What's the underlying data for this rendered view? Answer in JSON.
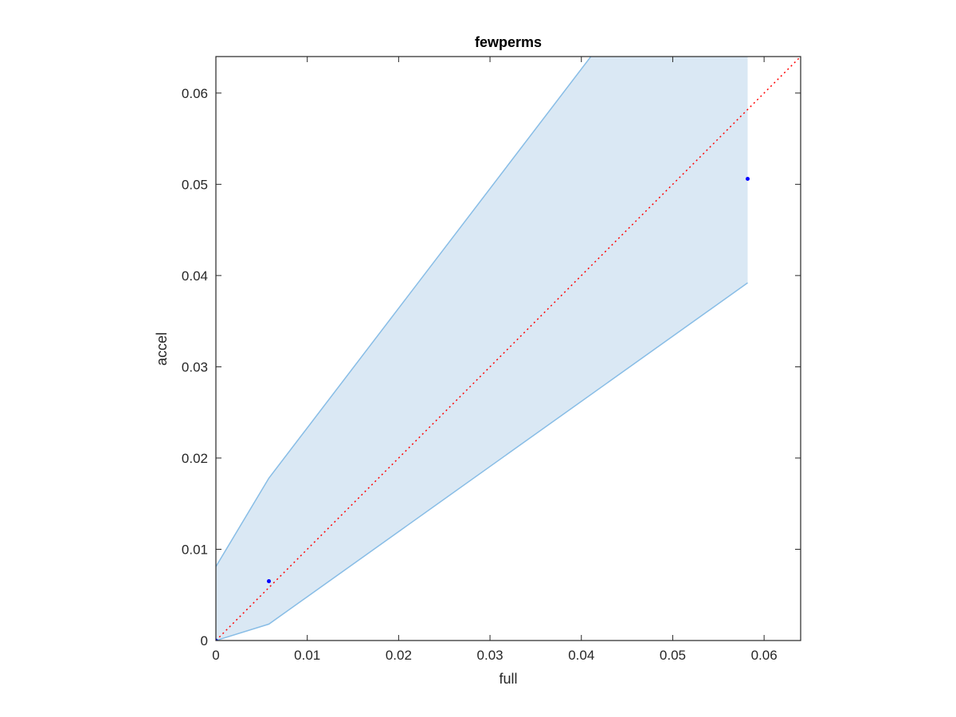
{
  "chart_data": {
    "type": "scatter",
    "title": "fewperms",
    "xlabel": "full",
    "ylabel": "accel",
    "xlim": [
      0,
      0.064
    ],
    "ylim": [
      0,
      0.064
    ],
    "grid": false,
    "x_ticks": [
      0,
      0.01,
      0.02,
      0.03,
      0.04,
      0.05,
      0.06
    ],
    "y_ticks": [
      0,
      0.01,
      0.02,
      0.03,
      0.04,
      0.05,
      0.06
    ],
    "x_tick_labels": [
      "0",
      "0.01",
      "0.02",
      "0.03",
      "0.04",
      "0.05",
      "0.06"
    ],
    "y_tick_labels": [
      "0",
      "0.01",
      "0.02",
      "0.03",
      "0.04",
      "0.05",
      "0.06"
    ],
    "series": [
      {
        "kind": "points",
        "color": "#0000ff",
        "x": [
          0,
          0.0058,
          0.0582
        ],
        "y": [
          0,
          0.0065,
          0.0506
        ]
      },
      {
        "kind": "band",
        "fill_color": "#dae8f4",
        "edge_color": "#88bde6",
        "x": [
          0,
          0.0058,
          0.0582
        ],
        "lower": [
          0,
          0.0018,
          0.0392
        ],
        "upper": [
          0.0081,
          0.0178,
          0.0865
        ]
      },
      {
        "kind": "reference-line",
        "color": "#ff0000",
        "style": "dotted",
        "x": [
          0,
          0.064
        ],
        "y": [
          0,
          0.064
        ]
      }
    ]
  }
}
